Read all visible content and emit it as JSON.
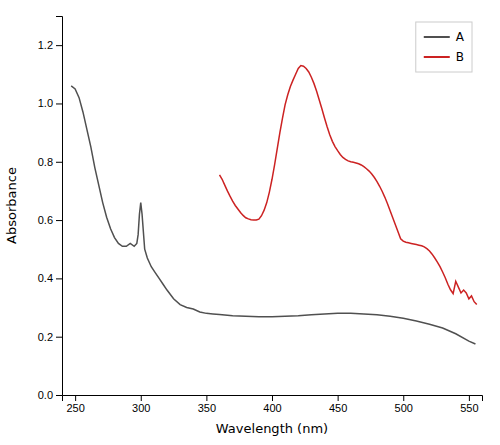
{
  "chart_data": {
    "type": "line",
    "xlabel": "Wavelength (nm)",
    "ylabel": "Absorbance",
    "xlim": [
      240,
      560
    ],
    "ylim": [
      0.0,
      1.3
    ],
    "xticks": [
      250,
      300,
      350,
      400,
      450,
      500,
      550
    ],
    "yticks": [
      {
        "value": 0.0,
        "label": "0.0"
      },
      0.2,
      0.4,
      0.6,
      0.8,
      {
        "value": 1.0,
        "label": "1.0"
      },
      1.2
    ],
    "grid": false,
    "legend": "upper right",
    "series": [
      {
        "name": "A",
        "color": "#505050",
        "x": [
          247,
          250,
          253,
          256,
          259,
          262,
          265,
          268,
          271,
          274,
          277,
          280,
          283,
          286,
          289,
          292,
          295,
          297,
          298,
          299,
          300,
          301,
          302,
          303,
          305,
          308,
          311,
          314,
          317,
          320,
          325,
          330,
          335,
          340,
          345,
          350,
          355,
          360,
          370,
          380,
          390,
          400,
          410,
          420,
          430,
          440,
          450,
          460,
          470,
          480,
          490,
          500,
          510,
          520,
          530,
          540,
          550,
          555
        ],
        "values": [
          1.06,
          1.05,
          1.02,
          0.97,
          0.91,
          0.85,
          0.78,
          0.72,
          0.66,
          0.61,
          0.57,
          0.54,
          0.52,
          0.51,
          0.51,
          0.52,
          0.51,
          0.52,
          0.55,
          0.62,
          0.66,
          0.62,
          0.56,
          0.5,
          0.47,
          0.44,
          0.42,
          0.4,
          0.38,
          0.36,
          0.33,
          0.31,
          0.3,
          0.295,
          0.285,
          0.28,
          0.278,
          0.276,
          0.272,
          0.27,
          0.268,
          0.268,
          0.27,
          0.272,
          0.275,
          0.278,
          0.28,
          0.28,
          0.278,
          0.275,
          0.27,
          0.263,
          0.254,
          0.243,
          0.23,
          0.21,
          0.185,
          0.175
        ]
      },
      {
        "name": "B",
        "color": "#cc2222",
        "x": [
          360,
          362,
          364,
          366,
          368,
          370,
          372,
          374,
          376,
          378,
          380,
          382,
          384,
          386,
          388,
          390,
          392,
          394,
          396,
          398,
          400,
          402,
          404,
          406,
          408,
          410,
          412,
          414,
          416,
          418,
          420,
          422,
          424,
          426,
          428,
          430,
          432,
          434,
          436,
          438,
          440,
          442,
          444,
          446,
          448,
          450,
          452,
          454,
          456,
          458,
          460,
          462,
          464,
          466,
          468,
          470,
          472,
          474,
          476,
          478,
          480,
          482,
          484,
          486,
          488,
          490,
          492,
          494,
          496,
          498,
          500,
          502,
          504,
          506,
          508,
          510,
          512,
          514,
          516,
          518,
          520,
          522,
          524,
          526,
          528,
          530,
          532,
          534,
          536,
          538,
          540,
          542,
          544,
          546,
          548,
          550,
          552,
          554,
          556
        ],
        "values": [
          0.755,
          0.74,
          0.72,
          0.7,
          0.682,
          0.665,
          0.65,
          0.638,
          0.626,
          0.616,
          0.608,
          0.604,
          0.601,
          0.6,
          0.6,
          0.603,
          0.615,
          0.634,
          0.66,
          0.696,
          0.74,
          0.79,
          0.845,
          0.9,
          0.95,
          0.996,
          1.03,
          1.058,
          1.08,
          1.1,
          1.12,
          1.13,
          1.128,
          1.12,
          1.108,
          1.09,
          1.068,
          1.042,
          1.012,
          0.982,
          0.95,
          0.92,
          0.893,
          0.87,
          0.852,
          0.838,
          0.825,
          0.815,
          0.808,
          0.803,
          0.8,
          0.798,
          0.796,
          0.793,
          0.789,
          0.783,
          0.776,
          0.768,
          0.758,
          0.746,
          0.732,
          0.716,
          0.698,
          0.678,
          0.656,
          0.632,
          0.608,
          0.584,
          0.56,
          0.536,
          0.528,
          0.524,
          0.522,
          0.52,
          0.518,
          0.516,
          0.514,
          0.512,
          0.508,
          0.502,
          0.494,
          0.483,
          0.47,
          0.456,
          0.44,
          0.422,
          0.402,
          0.38,
          0.361,
          0.348,
          0.39,
          0.37,
          0.35,
          0.36,
          0.35,
          0.33,
          0.34,
          0.32,
          0.31
        ]
      }
    ]
  }
}
